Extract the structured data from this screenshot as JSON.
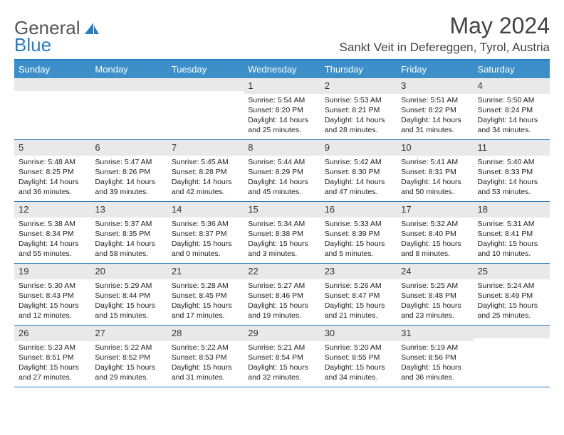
{
  "logo": {
    "text_general": "General",
    "text_blue": "Blue"
  },
  "title": "May 2024",
  "location": "Sankt Veit in Defereggen, Tyrol, Austria",
  "colors": {
    "header_bg": "#3d8fc9",
    "border": "#2a7bbf",
    "daynum_bg": "#e9e9e9",
    "text": "#222222",
    "title_text": "#444444"
  },
  "day_names": [
    "Sunday",
    "Monday",
    "Tuesday",
    "Wednesday",
    "Thursday",
    "Friday",
    "Saturday"
  ],
  "weeks": [
    [
      {
        "n": "",
        "sr": "",
        "ss": "",
        "dl": ""
      },
      {
        "n": "",
        "sr": "",
        "ss": "",
        "dl": ""
      },
      {
        "n": "",
        "sr": "",
        "ss": "",
        "dl": ""
      },
      {
        "n": "1",
        "sr": "5:54 AM",
        "ss": "8:20 PM",
        "dl": "14 hours and 25 minutes."
      },
      {
        "n": "2",
        "sr": "5:53 AM",
        "ss": "8:21 PM",
        "dl": "14 hours and 28 minutes."
      },
      {
        "n": "3",
        "sr": "5:51 AM",
        "ss": "8:22 PM",
        "dl": "14 hours and 31 minutes."
      },
      {
        "n": "4",
        "sr": "5:50 AM",
        "ss": "8:24 PM",
        "dl": "14 hours and 34 minutes."
      }
    ],
    [
      {
        "n": "5",
        "sr": "5:48 AM",
        "ss": "8:25 PM",
        "dl": "14 hours and 36 minutes."
      },
      {
        "n": "6",
        "sr": "5:47 AM",
        "ss": "8:26 PM",
        "dl": "14 hours and 39 minutes."
      },
      {
        "n": "7",
        "sr": "5:45 AM",
        "ss": "8:28 PM",
        "dl": "14 hours and 42 minutes."
      },
      {
        "n": "8",
        "sr": "5:44 AM",
        "ss": "8:29 PM",
        "dl": "14 hours and 45 minutes."
      },
      {
        "n": "9",
        "sr": "5:42 AM",
        "ss": "8:30 PM",
        "dl": "14 hours and 47 minutes."
      },
      {
        "n": "10",
        "sr": "5:41 AM",
        "ss": "8:31 PM",
        "dl": "14 hours and 50 minutes."
      },
      {
        "n": "11",
        "sr": "5:40 AM",
        "ss": "8:33 PM",
        "dl": "14 hours and 53 minutes."
      }
    ],
    [
      {
        "n": "12",
        "sr": "5:38 AM",
        "ss": "8:34 PM",
        "dl": "14 hours and 55 minutes."
      },
      {
        "n": "13",
        "sr": "5:37 AM",
        "ss": "8:35 PM",
        "dl": "14 hours and 58 minutes."
      },
      {
        "n": "14",
        "sr": "5:36 AM",
        "ss": "8:37 PM",
        "dl": "15 hours and 0 minutes."
      },
      {
        "n": "15",
        "sr": "5:34 AM",
        "ss": "8:38 PM",
        "dl": "15 hours and 3 minutes."
      },
      {
        "n": "16",
        "sr": "5:33 AM",
        "ss": "8:39 PM",
        "dl": "15 hours and 5 minutes."
      },
      {
        "n": "17",
        "sr": "5:32 AM",
        "ss": "8:40 PM",
        "dl": "15 hours and 8 minutes."
      },
      {
        "n": "18",
        "sr": "5:31 AM",
        "ss": "8:41 PM",
        "dl": "15 hours and 10 minutes."
      }
    ],
    [
      {
        "n": "19",
        "sr": "5:30 AM",
        "ss": "8:43 PM",
        "dl": "15 hours and 12 minutes."
      },
      {
        "n": "20",
        "sr": "5:29 AM",
        "ss": "8:44 PM",
        "dl": "15 hours and 15 minutes."
      },
      {
        "n": "21",
        "sr": "5:28 AM",
        "ss": "8:45 PM",
        "dl": "15 hours and 17 minutes."
      },
      {
        "n": "22",
        "sr": "5:27 AM",
        "ss": "8:46 PM",
        "dl": "15 hours and 19 minutes."
      },
      {
        "n": "23",
        "sr": "5:26 AM",
        "ss": "8:47 PM",
        "dl": "15 hours and 21 minutes."
      },
      {
        "n": "24",
        "sr": "5:25 AM",
        "ss": "8:48 PM",
        "dl": "15 hours and 23 minutes."
      },
      {
        "n": "25",
        "sr": "5:24 AM",
        "ss": "8:49 PM",
        "dl": "15 hours and 25 minutes."
      }
    ],
    [
      {
        "n": "26",
        "sr": "5:23 AM",
        "ss": "8:51 PM",
        "dl": "15 hours and 27 minutes."
      },
      {
        "n": "27",
        "sr": "5:22 AM",
        "ss": "8:52 PM",
        "dl": "15 hours and 29 minutes."
      },
      {
        "n": "28",
        "sr": "5:22 AM",
        "ss": "8:53 PM",
        "dl": "15 hours and 31 minutes."
      },
      {
        "n": "29",
        "sr": "5:21 AM",
        "ss": "8:54 PM",
        "dl": "15 hours and 32 minutes."
      },
      {
        "n": "30",
        "sr": "5:20 AM",
        "ss": "8:55 PM",
        "dl": "15 hours and 34 minutes."
      },
      {
        "n": "31",
        "sr": "5:19 AM",
        "ss": "8:56 PM",
        "dl": "15 hours and 36 minutes."
      },
      {
        "n": "",
        "sr": "",
        "ss": "",
        "dl": ""
      }
    ]
  ],
  "labels": {
    "sunrise": "Sunrise:",
    "sunset": "Sunset:",
    "daylight": "Daylight:"
  }
}
